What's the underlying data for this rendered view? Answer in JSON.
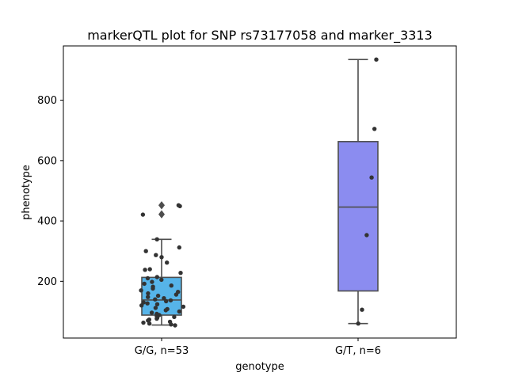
{
  "chart_data": {
    "type": "box",
    "title": "markerQTL plot for SNP rs73177058 and marker_3313",
    "xlabel": "genotype",
    "ylabel": "phenotype",
    "ylim": [
      12,
      980
    ],
    "yticks": [
      200,
      400,
      600,
      800
    ],
    "grid": false,
    "categories": [
      "G/G, n=53",
      "G/T, n=6"
    ],
    "colors": [
      "#56b4e9",
      "#8b8cf0"
    ],
    "point_color": "#333333",
    "boxes": [
      {
        "category": "G/G, n=53",
        "q1": 88,
        "median": 138,
        "q3": 213,
        "whisker_low": 55,
        "whisker_high": 339,
        "outliers": [
          422,
          452
        ]
      },
      {
        "category": "G/T, n=6",
        "q1": 168,
        "median": 446,
        "q3": 663,
        "whisker_low": 60,
        "whisker_high": 935,
        "outliers": []
      }
    ],
    "points": [
      {
        "category": "G/G, n=53",
        "values": [
          452,
          449,
          421,
          339,
          312,
          300,
          287,
          280,
          262,
          240,
          238,
          228,
          214,
          210,
          205,
          198,
          192,
          186,
          182,
          176,
          170,
          165,
          160,
          156,
          152,
          148,
          144,
          140,
          137,
          134,
          130,
          127,
          124,
          120,
          116,
          112,
          108,
          104,
          100,
          96,
          92,
          88,
          85,
          82,
          79,
          76,
          73,
          70,
          66,
          63,
          60,
          57,
          54
        ]
      },
      {
        "category": "G/T, n=6",
        "values": [
          935,
          705,
          544,
          353,
          106,
          60
        ]
      }
    ]
  }
}
